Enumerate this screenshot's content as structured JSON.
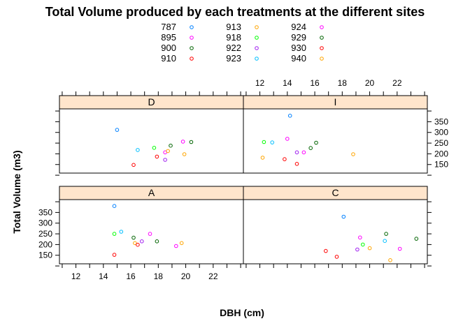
{
  "chart_data": {
    "type": "scatter",
    "title": "Total Volume produced by each treatments at the different sites",
    "xlabel": "DBH (cm)",
    "ylabel": "Total Volume (m3)",
    "xlim": [
      10.8,
      24.2
    ],
    "ylim": [
      110,
      410
    ],
    "x_ticks": [
      12,
      14,
      16,
      18,
      20,
      22
    ],
    "y_ticks": [
      150,
      200,
      250,
      300,
      350
    ],
    "legend_placement": "top",
    "series": [
      {
        "name": "787",
        "color": "#0080ff"
      },
      {
        "name": "895",
        "color": "#ff00ff"
      },
      {
        "name": "900",
        "color": "#006400"
      },
      {
        "name": "910",
        "color": "#ff0000"
      },
      {
        "name": "913",
        "color": "#ffa500"
      },
      {
        "name": "918",
        "color": "#00ff00"
      },
      {
        "name": "922",
        "color": "#a020f0"
      },
      {
        "name": "923",
        "color": "#00bfff"
      },
      {
        "name": "924",
        "color": "#ff00ff"
      },
      {
        "name": "929",
        "color": "#006400"
      },
      {
        "name": "930",
        "color": "#ff0000"
      },
      {
        "name": "940",
        "color": "#ffa500"
      }
    ],
    "panels": [
      {
        "name": "D",
        "points": [
          {
            "series": "787",
            "x": 15.0,
            "y": 312
          },
          {
            "series": "923",
            "x": 16.5,
            "y": 218
          },
          {
            "series": "910",
            "x": 16.2,
            "y": 148
          },
          {
            "series": "918",
            "x": 17.7,
            "y": 228
          },
          {
            "series": "930",
            "x": 17.9,
            "y": 187
          },
          {
            "series": "922",
            "x": 18.5,
            "y": 172
          },
          {
            "series": "895",
            "x": 18.5,
            "y": 207
          },
          {
            "series": "940",
            "x": 18.7,
            "y": 213
          },
          {
            "series": "900",
            "x": 18.9,
            "y": 238
          },
          {
            "series": "924",
            "x": 19.8,
            "y": 257
          },
          {
            "series": "913",
            "x": 19.9,
            "y": 198
          },
          {
            "series": "929",
            "x": 20.4,
            "y": 255
          }
        ]
      },
      {
        "name": "I",
        "points": [
          {
            "series": "787",
            "x": 14.2,
            "y": 378
          },
          {
            "series": "913",
            "x": 12.2,
            "y": 182
          },
          {
            "series": "918",
            "x": 12.3,
            "y": 255
          },
          {
            "series": "923",
            "x": 12.9,
            "y": 253
          },
          {
            "series": "930",
            "x": 13.8,
            "y": 175
          },
          {
            "series": "895",
            "x": 14.0,
            "y": 270
          },
          {
            "series": "910",
            "x": 14.7,
            "y": 153
          },
          {
            "series": "922",
            "x": 14.7,
            "y": 207
          },
          {
            "series": "924",
            "x": 15.2,
            "y": 207
          },
          {
            "series": "900",
            "x": 15.7,
            "y": 227
          },
          {
            "series": "929",
            "x": 16.1,
            "y": 252
          },
          {
            "series": "940",
            "x": 18.8,
            "y": 198
          }
        ]
      },
      {
        "name": "A",
        "points": [
          {
            "series": "787",
            "x": 14.8,
            "y": 380
          },
          {
            "series": "918",
            "x": 14.8,
            "y": 250
          },
          {
            "series": "910",
            "x": 14.8,
            "y": 152
          },
          {
            "series": "923",
            "x": 15.3,
            "y": 260
          },
          {
            "series": "900",
            "x": 16.2,
            "y": 232
          },
          {
            "series": "913",
            "x": 16.3,
            "y": 207
          },
          {
            "series": "930",
            "x": 16.5,
            "y": 199
          },
          {
            "series": "922",
            "x": 16.8,
            "y": 215
          },
          {
            "series": "895",
            "x": 17.4,
            "y": 250
          },
          {
            "series": "929",
            "x": 17.9,
            "y": 215
          },
          {
            "series": "940",
            "x": 19.7,
            "y": 207
          },
          {
            "series": "924",
            "x": 19.3,
            "y": 193
          }
        ]
      },
      {
        "name": "C",
        "points": [
          {
            "series": "787",
            "x": 18.1,
            "y": 330
          },
          {
            "series": "910",
            "x": 16.8,
            "y": 170
          },
          {
            "series": "930",
            "x": 17.6,
            "y": 143
          },
          {
            "series": "895",
            "x": 19.3,
            "y": 233
          },
          {
            "series": "922",
            "x": 19.1,
            "y": 177
          },
          {
            "series": "918",
            "x": 19.5,
            "y": 200
          },
          {
            "series": "913",
            "x": 20.0,
            "y": 183
          },
          {
            "series": "923",
            "x": 21.1,
            "y": 217
          },
          {
            "series": "900",
            "x": 21.2,
            "y": 250
          },
          {
            "series": "940",
            "x": 21.5,
            "y": 127
          },
          {
            "series": "924",
            "x": 22.2,
            "y": 180
          },
          {
            "series": "929",
            "x": 23.4,
            "y": 227
          }
        ]
      }
    ]
  }
}
